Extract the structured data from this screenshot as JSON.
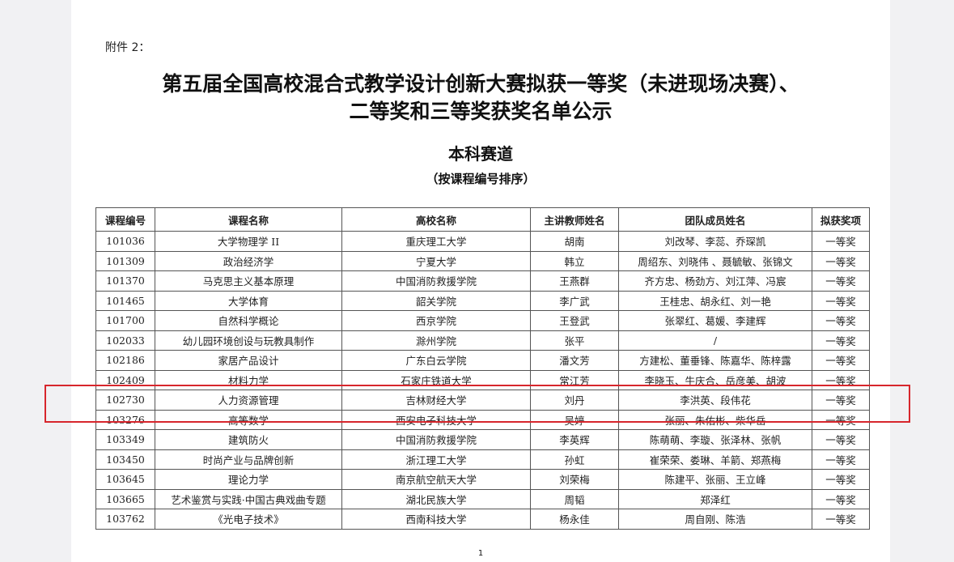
{
  "header": {
    "attachment": "附件 2：",
    "title_line1": "第五届全国高校混合式教学设计创新大赛拟获一等奖（未进现场决赛）、",
    "title_line2": "二等奖和三等奖获奖名单公示",
    "track": "本科赛道",
    "sort_note": "（按课程编号排序）"
  },
  "table": {
    "headers": [
      "课程编号",
      "课程名称",
      "高校名称",
      "主讲教师姓名",
      "团队成员姓名",
      "拟获奖项"
    ],
    "rows": [
      [
        "101036",
        "大学物理学 II",
        "重庆理工大学",
        "胡南",
        "刘改琴、李蕊、乔琛凯",
        "一等奖"
      ],
      [
        "101309",
        "政治经济学",
        "宁夏大学",
        "韩立",
        "周绍东、刘晓伟 、聂毓敏、张锦文",
        "一等奖"
      ],
      [
        "101370",
        "马克思主义基本原理",
        "中国消防救援学院",
        "王燕群",
        "齐方忠、杨劲方、刘江萍、冯宸",
        "一等奖"
      ],
      [
        "101465",
        "大学体育",
        "韶关学院",
        "李广武",
        "王桂忠、胡永红、刘一艳",
        "一等奖"
      ],
      [
        "101700",
        "自然科学概论",
        "西京学院",
        "王登武",
        "张翠红、葛媛、李建辉",
        "一等奖"
      ],
      [
        "102033",
        "幼儿园环境创设与玩教具制作",
        "滁州学院",
        "张平",
        "/",
        "一等奖"
      ],
      [
        "102186",
        "家居产品设计",
        "广东白云学院",
        "潘文芳",
        "方建松、董垂锋、陈嘉华、陈梓露",
        "一等奖"
      ],
      [
        "102409",
        "材料力学",
        "石家庄铁道大学",
        "常江芳",
        "李晓玉、牛庆合、岳彦美、胡波",
        "一等奖"
      ],
      [
        "102730",
        "人力资源管理",
        "吉林财经大学",
        "刘丹",
        "李洪英、段伟花",
        "一等奖"
      ],
      [
        "103276",
        "高等数学",
        "西安电子科技大学",
        "吴婷",
        "张丽、朱佑彬、柴华岳",
        "一等奖"
      ],
      [
        "103349",
        "建筑防火",
        "中国消防救援学院",
        "李英辉",
        "陈萌萌、李璇、张泽林、张帆",
        "一等奖"
      ],
      [
        "103450",
        "时尚产业与品牌创新",
        "浙江理工大学",
        "孙虹",
        "崔荣荣、娄琳、羊箭、郑燕梅",
        "一等奖"
      ],
      [
        "103645",
        "理论力学",
        "南京航空航天大学",
        "刘荣梅",
        "陈建平、张丽、王立峰",
        "一等奖"
      ],
      [
        "103665",
        "艺术鉴赏与实践·中国古典戏曲专题",
        "湖北民族大学",
        "周韬",
        "郑泽红",
        "一等奖"
      ],
      [
        "103762",
        "《光电子技术》",
        "西南科技大学",
        "杨永佳",
        "周自刚、陈浩",
        "一等奖"
      ]
    ]
  },
  "footer": {
    "page_number": "1"
  }
}
